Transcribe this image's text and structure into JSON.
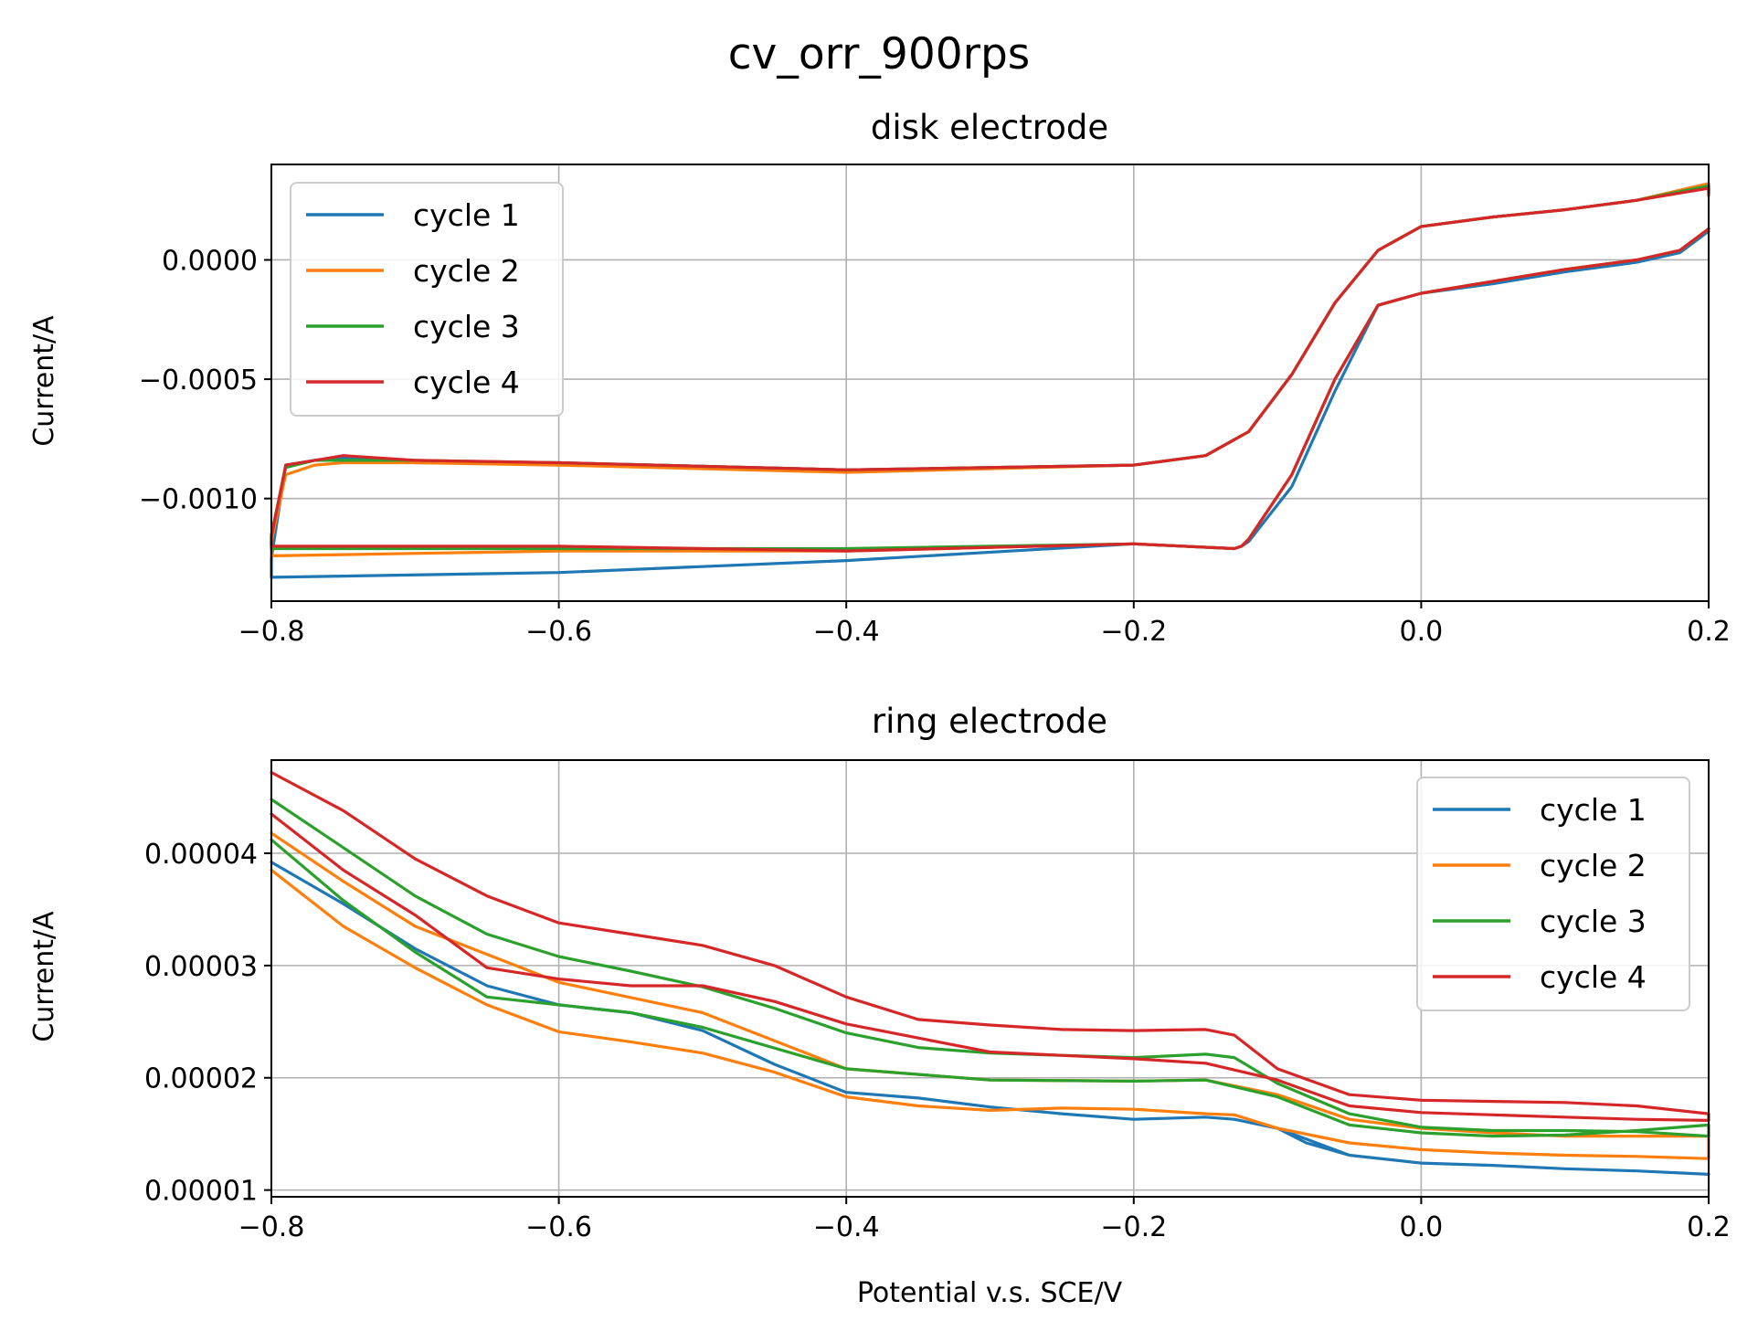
{
  "figure": {
    "title": "cv_orr_900rps"
  },
  "colors": {
    "cycle1": "#1f77b4",
    "cycle2": "#ff7f0e",
    "cycle3": "#2ca02c",
    "cycle4": "#d62728"
  },
  "chart_data": [
    {
      "type": "line",
      "title": "disk electrode",
      "xlabel": "",
      "ylabel": "Current/A",
      "xlim": [
        -0.8,
        0.2
      ],
      "ylim": [
        -0.00143,
        0.0004
      ],
      "x_ticks": [
        -0.8,
        -0.6,
        -0.4,
        -0.2,
        0.0,
        0.2
      ],
      "x_tick_labels": [
        "−0.8",
        "−0.6",
        "−0.4",
        "−0.2",
        "0.0",
        "0.2"
      ],
      "y_ticks": [
        0.0,
        -0.0005,
        -0.001
      ],
      "y_tick_labels": [
        "0.0000",
        "−0.0005",
        "−0.0010"
      ],
      "grid": true,
      "legend_position": "upper-left",
      "series": [
        {
          "name": "cycle 1",
          "color": "#1f77b4",
          "x": [
            0.2,
            0.18,
            0.15,
            0.1,
            0.05,
            0.0,
            -0.03,
            -0.06,
            -0.09,
            -0.12,
            -0.125,
            -0.13,
            -0.2,
            -0.4,
            -0.6,
            -0.8,
            -0.8,
            -0.79,
            -0.77,
            -0.75,
            -0.7,
            -0.6,
            -0.4,
            -0.2,
            -0.15,
            -0.12,
            -0.09,
            -0.06,
            -0.03,
            0.0,
            0.05,
            0.1,
            0.15,
            0.2,
            0.2
          ],
          "y": [
            0.00012,
            3e-05,
            -1e-05,
            -5e-05,
            -0.0001,
            -0.00014,
            -0.00019,
            -0.00055,
            -0.00095,
            -0.00118,
            -0.0012,
            -0.00121,
            -0.00119,
            -0.00126,
            -0.00131,
            -0.00133,
            -0.00125,
            -0.00086,
            -0.00084,
            -0.00083,
            -0.00085,
            -0.00085,
            -0.00088,
            -0.00086,
            -0.00082,
            -0.00072,
            -0.00048,
            -0.00018,
            4e-05,
            0.00014,
            0.00018,
            0.00021,
            0.00025,
            0.00032,
            0.00028
          ]
        },
        {
          "name": "cycle 2",
          "color": "#ff7f0e",
          "x": [
            0.2,
            0.18,
            0.15,
            0.1,
            0.05,
            0.0,
            -0.03,
            -0.06,
            -0.09,
            -0.12,
            -0.125,
            -0.13,
            -0.2,
            -0.4,
            -0.6,
            -0.8,
            -0.8,
            -0.79,
            -0.77,
            -0.75,
            -0.7,
            -0.6,
            -0.4,
            -0.2,
            -0.15,
            -0.12,
            -0.09,
            -0.06,
            -0.03,
            0.0,
            0.05,
            0.1,
            0.15,
            0.2,
            0.2
          ],
          "y": [
            0.00013,
            4e-05,
            0.0,
            -4e-05,
            -9e-05,
            -0.00014,
            -0.00019,
            -0.0005,
            -0.0009,
            -0.00117,
            -0.0012,
            -0.00121,
            -0.00119,
            -0.00122,
            -0.00122,
            -0.00124,
            -0.00118,
            -0.0009,
            -0.00086,
            -0.00085,
            -0.00085,
            -0.00086,
            -0.00089,
            -0.00086,
            -0.00082,
            -0.00072,
            -0.00048,
            -0.00018,
            4e-05,
            0.00014,
            0.00018,
            0.00021,
            0.00025,
            0.00032,
            0.00029
          ]
        },
        {
          "name": "cycle 3",
          "color": "#2ca02c",
          "x": [
            0.2,
            0.18,
            0.15,
            0.1,
            0.05,
            0.0,
            -0.03,
            -0.06,
            -0.09,
            -0.12,
            -0.125,
            -0.13,
            -0.2,
            -0.4,
            -0.6,
            -0.8,
            -0.8,
            -0.79,
            -0.77,
            -0.75,
            -0.7,
            -0.6,
            -0.4,
            -0.2,
            -0.15,
            -0.12,
            -0.09,
            -0.06,
            -0.03,
            0.0,
            0.05,
            0.1,
            0.15,
            0.2,
            0.2
          ],
          "y": [
            0.00013,
            4e-05,
            0.0,
            -4e-05,
            -9e-05,
            -0.00014,
            -0.00019,
            -0.0005,
            -0.0009,
            -0.00117,
            -0.0012,
            -0.00121,
            -0.00119,
            -0.00121,
            -0.00121,
            -0.00121,
            -0.00115,
            -0.00087,
            -0.00084,
            -0.00084,
            -0.00084,
            -0.00085,
            -0.00088,
            -0.00086,
            -0.00082,
            -0.00072,
            -0.00048,
            -0.00018,
            4e-05,
            0.00014,
            0.00018,
            0.00021,
            0.00025,
            0.00031,
            0.00028
          ]
        },
        {
          "name": "cycle 4",
          "color": "#d62728",
          "x": [
            0.2,
            0.18,
            0.15,
            0.1,
            0.05,
            0.0,
            -0.03,
            -0.06,
            -0.09,
            -0.12,
            -0.125,
            -0.13,
            -0.2,
            -0.4,
            -0.6,
            -0.8,
            -0.8,
            -0.79,
            -0.77,
            -0.75,
            -0.7,
            -0.6,
            -0.4,
            -0.2,
            -0.15,
            -0.12,
            -0.09,
            -0.06,
            -0.03,
            0.0,
            0.05,
            0.1,
            0.15,
            0.2,
            0.2
          ],
          "y": [
            0.00013,
            4e-05,
            0.0,
            -4e-05,
            -9e-05,
            -0.00014,
            -0.00019,
            -0.0005,
            -0.0009,
            -0.00117,
            -0.0012,
            -0.00121,
            -0.00119,
            -0.00122,
            -0.0012,
            -0.0012,
            -0.00116,
            -0.00086,
            -0.00084,
            -0.00082,
            -0.00084,
            -0.00085,
            -0.00088,
            -0.00086,
            -0.00082,
            -0.00072,
            -0.00048,
            -0.00018,
            4e-05,
            0.00014,
            0.00018,
            0.00021,
            0.00025,
            0.0003,
            0.00027
          ]
        }
      ]
    },
    {
      "type": "line",
      "title": "ring electrode",
      "xlabel": "Potential v.s. SCE/V",
      "ylabel": "Current/A",
      "xlim": [
        -0.8,
        0.2
      ],
      "ylim": [
        9.4e-06,
        4.83e-05
      ],
      "x_ticks": [
        -0.8,
        -0.6,
        -0.4,
        -0.2,
        0.0,
        0.2
      ],
      "x_tick_labels": [
        "−0.8",
        "−0.6",
        "−0.4",
        "−0.2",
        "0.0",
        "0.2"
      ],
      "y_ticks": [
        1e-05,
        2e-05,
        3e-05,
        4e-05
      ],
      "y_tick_labels": [
        "0.00001",
        "0.00002",
        "0.00003",
        "0.00004"
      ],
      "grid": true,
      "legend_position": "upper-right",
      "series": [
        {
          "name": "cycle 1",
          "color": "#1f77b4",
          "x": [
            -0.8,
            -0.75,
            -0.7,
            -0.65,
            -0.6,
            -0.55,
            -0.5,
            -0.45,
            -0.4,
            -0.35,
            -0.3,
            -0.25,
            -0.2,
            -0.15,
            -0.13,
            -0.1,
            -0.08,
            -0.05,
            0.0,
            0.05,
            0.1,
            0.15,
            0.2,
            0.2,
            0.15,
            0.1,
            0.05,
            0.0,
            -0.05,
            -0.1,
            -0.13,
            -0.15,
            -0.2,
            -0.25,
            -0.3,
            -0.35,
            -0.4,
            -0.45,
            -0.5,
            -0.55,
            -0.6,
            -0.65,
            -0.7,
            -0.75,
            -0.8
          ],
          "y": [
            3.92e-05,
            3.55e-05,
            3.15e-05,
            2.82e-05,
            2.65e-05,
            2.58e-05,
            2.42e-05,
            2.12e-05,
            1.87e-05,
            1.82e-05,
            1.74e-05,
            1.68e-05,
            1.63e-05,
            1.65e-05,
            1.63e-05,
            1.55e-05,
            1.42e-05,
            1.31e-05,
            1.24e-05,
            1.22e-05,
            1.19e-05,
            1.17e-05,
            1.14e-05,
            1.14e-05,
            1.17e-05,
            1.19e-05,
            1.22e-05,
            1.24e-05,
            1.31e-05,
            1.55e-05,
            1.63e-05,
            1.65e-05,
            1.63e-05,
            1.68e-05,
            1.74e-05,
            1.82e-05,
            1.87e-05,
            2.12e-05,
            2.42e-05,
            2.58e-05,
            2.65e-05,
            2.82e-05,
            3.15e-05,
            3.55e-05,
            3.92e-05
          ]
        },
        {
          "name": "cycle 2",
          "color": "#ff7f0e",
          "x": [
            -0.8,
            -0.75,
            -0.7,
            -0.65,
            -0.6,
            -0.55,
            -0.5,
            -0.45,
            -0.4,
            -0.35,
            -0.3,
            -0.25,
            -0.2,
            -0.15,
            -0.13,
            -0.1,
            -0.05,
            0.0,
            0.05,
            0.1,
            0.15,
            0.2,
            0.2,
            0.15,
            0.1,
            0.05,
            0.0,
            -0.05,
            -0.1,
            -0.15,
            -0.2,
            -0.3,
            -0.4,
            -0.5,
            -0.6,
            -0.7,
            -0.75,
            -0.8
          ],
          "y": [
            3.85e-05,
            3.35e-05,
            2.98e-05,
            2.65e-05,
            2.41e-05,
            2.32e-05,
            2.22e-05,
            2.05e-05,
            1.83e-05,
            1.75e-05,
            1.71e-05,
            1.73e-05,
            1.72e-05,
            1.68e-05,
            1.67e-05,
            1.55e-05,
            1.42e-05,
            1.36e-05,
            1.33e-05,
            1.31e-05,
            1.3e-05,
            1.28e-05,
            1.48e-05,
            1.48e-05,
            1.48e-05,
            1.51e-05,
            1.55e-05,
            1.63e-05,
            1.85e-05,
            1.98e-05,
            1.97e-05,
            1.98e-05,
            2.08e-05,
            2.58e-05,
            2.85e-05,
            3.35e-05,
            3.75e-05,
            4.18e-05
          ]
        },
        {
          "name": "cycle 3",
          "color": "#2ca02c",
          "x": [
            -0.8,
            -0.75,
            -0.7,
            -0.65,
            -0.6,
            -0.55,
            -0.5,
            -0.45,
            -0.4,
            -0.35,
            -0.3,
            -0.25,
            -0.2,
            -0.15,
            -0.13,
            -0.1,
            -0.05,
            0.0,
            0.05,
            0.1,
            0.15,
            0.2,
            0.2,
            0.15,
            0.1,
            0.05,
            0.0,
            -0.05,
            -0.1,
            -0.15,
            -0.2,
            -0.3,
            -0.4,
            -0.5,
            -0.55,
            -0.6,
            -0.65,
            -0.7,
            -0.75,
            -0.8
          ],
          "y": [
            4.48e-05,
            4.05e-05,
            3.62e-05,
            3.28e-05,
            3.08e-05,
            2.95e-05,
            2.81e-05,
            2.62e-05,
            2.4e-05,
            2.27e-05,
            2.22e-05,
            2.2e-05,
            2.18e-05,
            2.21e-05,
            2.18e-05,
            1.95e-05,
            1.68e-05,
            1.56e-05,
            1.53e-05,
            1.53e-05,
            1.52e-05,
            1.48e-05,
            1.58e-05,
            1.53e-05,
            1.49e-05,
            1.48e-05,
            1.51e-05,
            1.58e-05,
            1.83e-05,
            1.98e-05,
            1.97e-05,
            1.98e-05,
            2.08e-05,
            2.45e-05,
            2.58e-05,
            2.65e-05,
            2.72e-05,
            3.12e-05,
            3.58e-05,
            4.12e-05
          ]
        },
        {
          "name": "cycle 4",
          "color": "#d62728",
          "x": [
            -0.8,
            -0.75,
            -0.7,
            -0.65,
            -0.6,
            -0.55,
            -0.5,
            -0.45,
            -0.4,
            -0.35,
            -0.3,
            -0.25,
            -0.2,
            -0.15,
            -0.13,
            -0.1,
            -0.05,
            0.0,
            0.05,
            0.1,
            0.15,
            0.2,
            0.2,
            0.15,
            0.1,
            0.05,
            0.0,
            -0.05,
            -0.1,
            -0.15,
            -0.2,
            -0.3,
            -0.4,
            -0.45,
            -0.5,
            -0.55,
            -0.6,
            -0.65,
            -0.7,
            -0.75,
            -0.8
          ],
          "y": [
            4.72e-05,
            4.38e-05,
            3.95e-05,
            3.62e-05,
            3.38e-05,
            3.28e-05,
            3.18e-05,
            3e-05,
            2.72e-05,
            2.52e-05,
            2.47e-05,
            2.43e-05,
            2.42e-05,
            2.43e-05,
            2.38e-05,
            2.08e-05,
            1.85e-05,
            1.8e-05,
            1.79e-05,
            1.78e-05,
            1.75e-05,
            1.68e-05,
            1.62e-05,
            1.63e-05,
            1.65e-05,
            1.67e-05,
            1.69e-05,
            1.75e-05,
            1.98e-05,
            2.13e-05,
            2.17e-05,
            2.23e-05,
            2.48e-05,
            2.68e-05,
            2.82e-05,
            2.82e-05,
            2.88e-05,
            2.98e-05,
            3.45e-05,
            3.85e-05,
            4.35e-05
          ]
        }
      ]
    }
  ]
}
